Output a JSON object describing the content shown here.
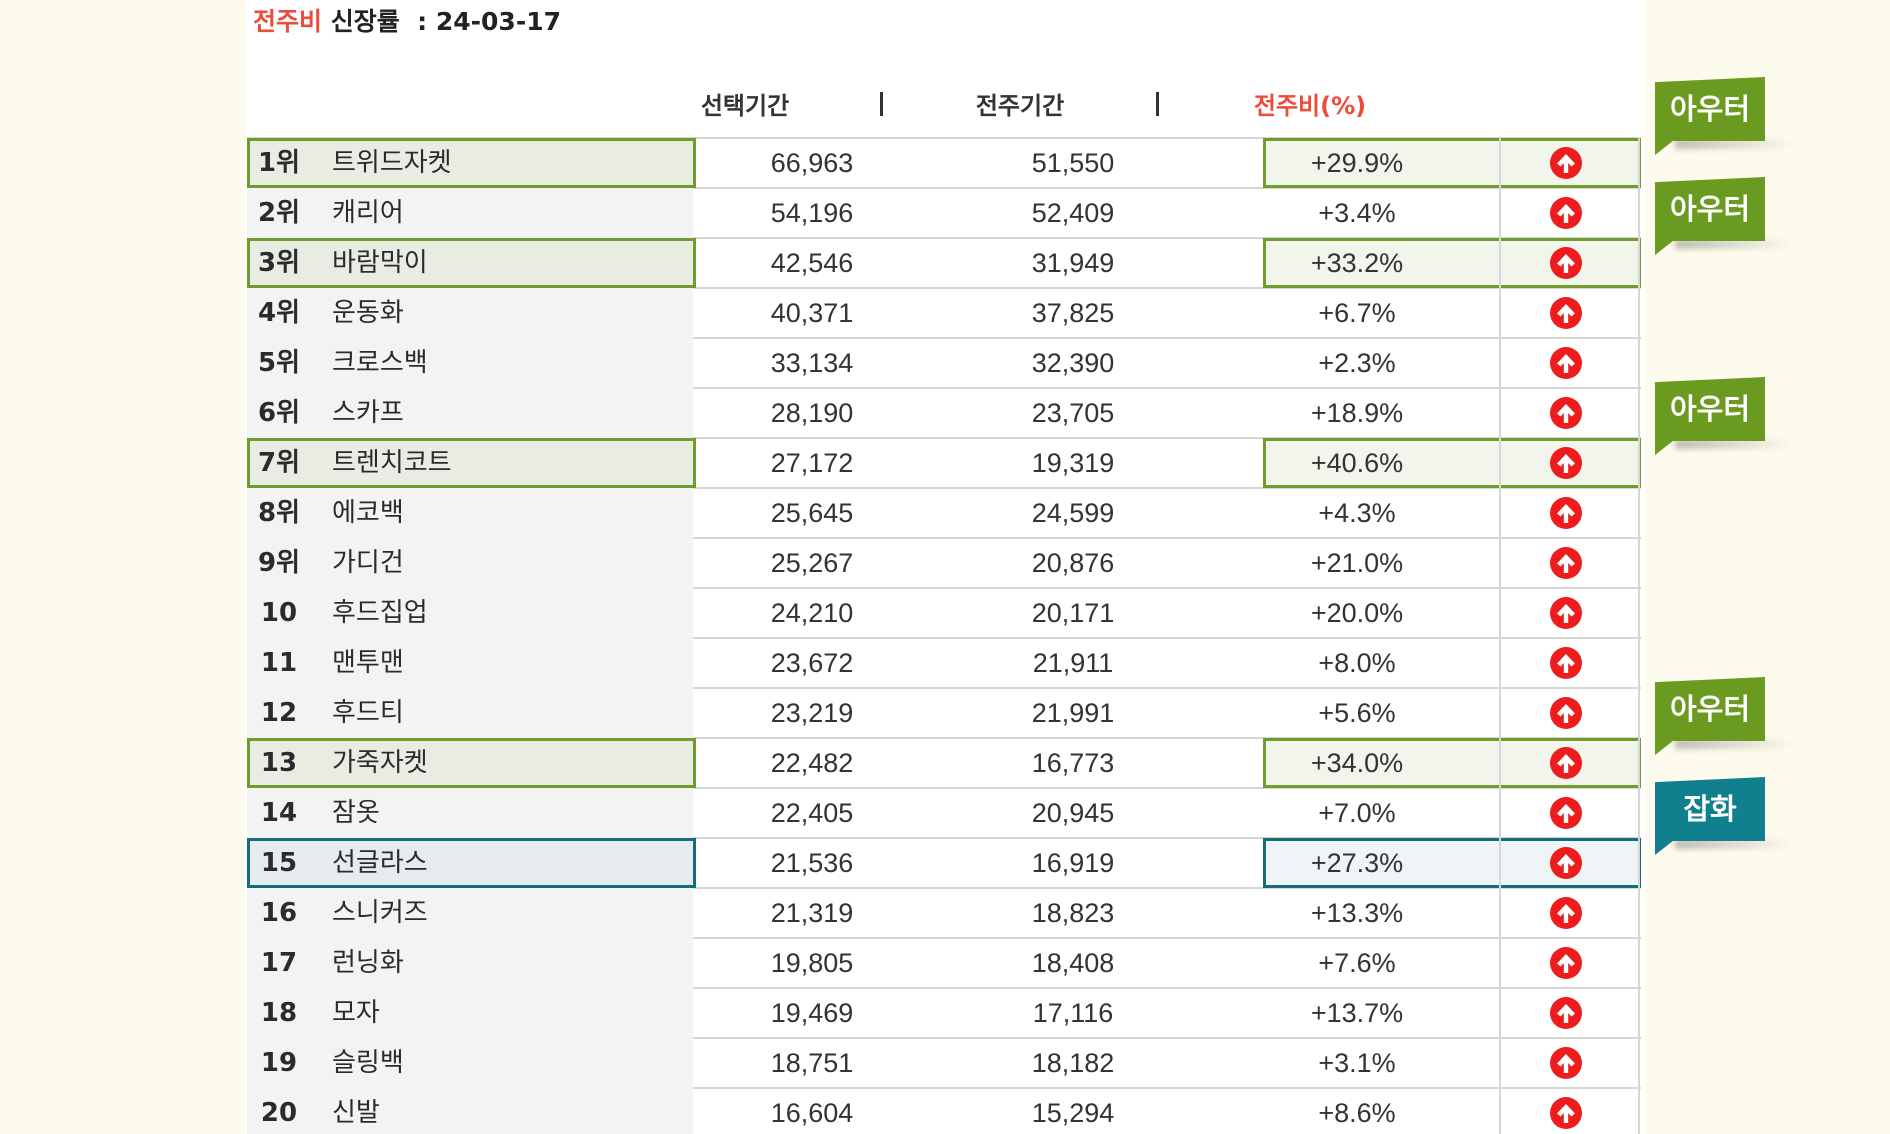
{
  "header": {
    "title_accent": "전주비",
    "title_rest": "신장률",
    "date_label": ": 24-03-17"
  },
  "columns": {
    "selected": "선택기간",
    "previous": "전주기간",
    "wow": "전주비(%)"
  },
  "icons": {
    "trend": "arrow-up-circle-icon",
    "trend_color": "#ee1c1c"
  },
  "rows": [
    {
      "rank": "1위",
      "name": "트위드자켓",
      "selected": "66,963",
      "previous": "51,550",
      "wow": "+29.9%",
      "highlight": "green"
    },
    {
      "rank": "2위",
      "name": "캐리어",
      "selected": "54,196",
      "previous": "52,409",
      "wow": "+3.4%",
      "highlight": ""
    },
    {
      "rank": "3위",
      "name": "바람막이",
      "selected": "42,546",
      "previous": "31,949",
      "wow": "+33.2%",
      "highlight": "green"
    },
    {
      "rank": "4위",
      "name": "운동화",
      "selected": "40,371",
      "previous": "37,825",
      "wow": "+6.7%",
      "highlight": ""
    },
    {
      "rank": "5위",
      "name": "크로스백",
      "selected": "33,134",
      "previous": "32,390",
      "wow": "+2.3%",
      "highlight": ""
    },
    {
      "rank": "6위",
      "name": "스카프",
      "selected": "28,190",
      "previous": "23,705",
      "wow": "+18.9%",
      "highlight": ""
    },
    {
      "rank": "7위",
      "name": "트렌치코트",
      "selected": "27,172",
      "previous": "19,319",
      "wow": "+40.6%",
      "highlight": "green"
    },
    {
      "rank": "8위",
      "name": "에코백",
      "selected": "25,645",
      "previous": "24,599",
      "wow": "+4.3%",
      "highlight": ""
    },
    {
      "rank": "9위",
      "name": "가디건",
      "selected": "25,267",
      "previous": "20,876",
      "wow": "+21.0%",
      "highlight": ""
    },
    {
      "rank": "10위",
      "name": "후드집업",
      "selected": "24,210",
      "previous": "20,171",
      "wow": "+20.0%",
      "highlight": ""
    },
    {
      "rank": "11위",
      "name": "맨투맨",
      "selected": "23,672",
      "previous": "21,911",
      "wow": "+8.0%",
      "highlight": ""
    },
    {
      "rank": "12위",
      "name": "후드티",
      "selected": "23,219",
      "previous": "21,991",
      "wow": "+5.6%",
      "highlight": ""
    },
    {
      "rank": "13위",
      "name": "가죽자켓",
      "selected": "22,482",
      "previous": "16,773",
      "wow": "+34.0%",
      "highlight": "green"
    },
    {
      "rank": "14위",
      "name": "잠옷",
      "selected": "22,405",
      "previous": "20,945",
      "wow": "+7.0%",
      "highlight": ""
    },
    {
      "rank": "15위",
      "name": "선글라스",
      "selected": "21,536",
      "previous": "16,919",
      "wow": "+27.3%",
      "highlight": "teal"
    },
    {
      "rank": "16위",
      "name": "스니커즈",
      "selected": "21,319",
      "previous": "18,823",
      "wow": "+13.3%",
      "highlight": ""
    },
    {
      "rank": "17위",
      "name": "런닝화",
      "selected": "19,805",
      "previous": "18,408",
      "wow": "+7.6%",
      "highlight": ""
    },
    {
      "rank": "18위",
      "name": "모자",
      "selected": "19,469",
      "previous": "17,116",
      "wow": "+13.7%",
      "highlight": ""
    },
    {
      "rank": "19위",
      "name": "슬링백",
      "selected": "18,751",
      "previous": "18,182",
      "wow": "+3.1%",
      "highlight": ""
    },
    {
      "rank": "20위",
      "name": "신발",
      "selected": "16,604",
      "previous": "15,294",
      "wow": "+8.6%",
      "highlight": ""
    }
  ],
  "callouts": [
    {
      "label": "아우터",
      "row": 1,
      "color": "#6a9a1f"
    },
    {
      "label": "아우터",
      "row": 3,
      "color": "#6a9a1f"
    },
    {
      "label": "아우터",
      "row": 7,
      "color": "#6a9a1f"
    },
    {
      "label": "아우터",
      "row": 13,
      "color": "#6a9a1f"
    },
    {
      "label": "잡화",
      "row": 15,
      "color": "#10808f"
    }
  ]
}
